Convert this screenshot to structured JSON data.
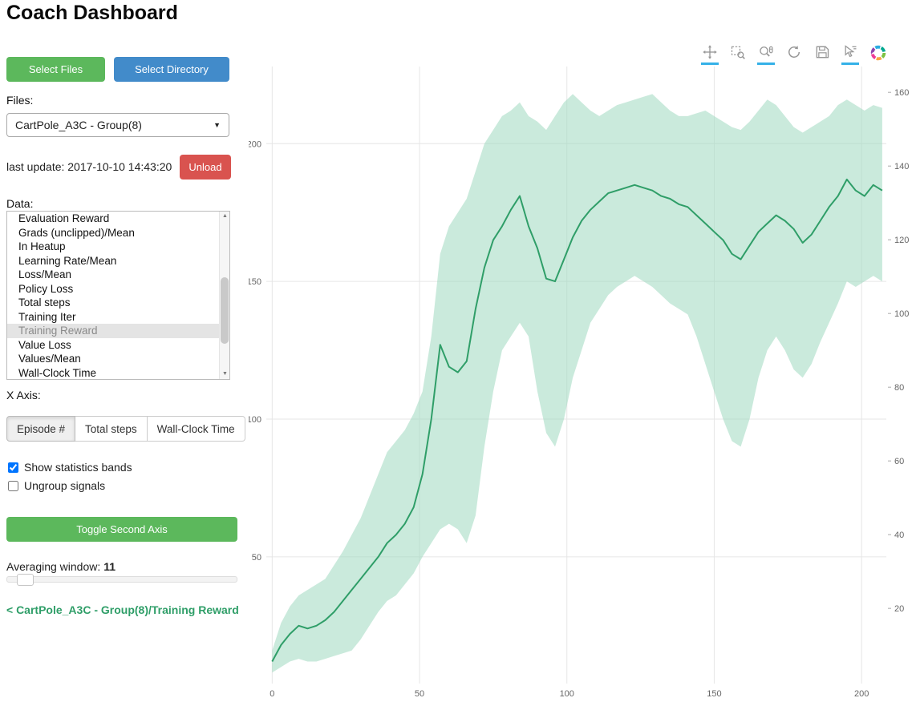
{
  "header": {
    "title": "Coach Dashboard"
  },
  "sidebar": {
    "select_files_label": "Select Files",
    "select_directory_label": "Select Directory",
    "files_label": "Files:",
    "files_selected": "CartPole_A3C - Group(8)",
    "last_update": "last update: 2017-10-10 14:43:20",
    "unload_label": "Unload",
    "data_label": "Data:",
    "data_items": [
      "Evaluation Reward",
      "Grads (unclipped)/Mean",
      "In Heatup",
      "Learning Rate/Mean",
      "Loss/Mean",
      "Policy Loss",
      "Total steps",
      "Training Iter",
      "Training Reward",
      "Value Loss",
      "Values/Mean",
      "Wall-Clock Time"
    ],
    "selected_data_item": "Training Reward",
    "x_axis_label": "X Axis:",
    "x_axis_options": [
      "Episode #",
      "Total steps",
      "Wall-Clock Time"
    ],
    "x_axis_selected": "Episode #",
    "show_bands_label": "Show statistics bands",
    "show_bands_checked": true,
    "ungroup_label": "Ungroup signals",
    "ungroup_checked": false,
    "toggle_second_axis_label": "Toggle Second Axis",
    "averaging_label": "Averaging window:",
    "averaging_value": "11",
    "breadcrumb_link": "< CartPole_A3C - Group(8)/Training Reward"
  },
  "toolbar": {
    "tools": [
      {
        "name": "pan",
        "active": true
      },
      {
        "name": "box-zoom",
        "active": false
      },
      {
        "name": "wheel-zoom",
        "active": true
      },
      {
        "name": "reset",
        "active": false
      },
      {
        "name": "save",
        "active": false
      },
      {
        "name": "hover",
        "active": true
      }
    ],
    "logo": "bokeh"
  },
  "colors": {
    "button_green": "#5cb85c",
    "button_blue": "#428bca",
    "button_red": "#d9534f",
    "link_green": "#2f9e68",
    "active_tool_underline": "#35b1e8"
  },
  "chart_data": {
    "type": "line",
    "title": "",
    "series_name": "CartPole_A3C - Group(8)/Training Reward",
    "xlabel": "Episode #",
    "ylabel": "Training Reward",
    "legend": "none",
    "grid": true,
    "line_color": "#2f9e68",
    "band_color": "#9fd9c0",
    "x_ticks": [
      0,
      50,
      100,
      150,
      200
    ],
    "y_left_ticks": [
      50,
      100,
      150,
      200
    ],
    "y_right_ticks": [
      20,
      40,
      60,
      80,
      100,
      120,
      140,
      160
    ],
    "x_range": [
      -2,
      208.4
    ],
    "y_left_range": [
      4,
      228
    ],
    "y_right_range": [
      -0.4,
      167
    ],
    "x": [
      0,
      3,
      6,
      9,
      12,
      15,
      18,
      21,
      24,
      27,
      30,
      33,
      36,
      39,
      42,
      45,
      48,
      51,
      54,
      57,
      60,
      63,
      66,
      69,
      72,
      75,
      78,
      81,
      84,
      87,
      90,
      93,
      96,
      99,
      102,
      105,
      108,
      111,
      114,
      117,
      120,
      123,
      126,
      129,
      132,
      135,
      138,
      141,
      144,
      147,
      150,
      153,
      156,
      159,
      162,
      165,
      168,
      171,
      174,
      177,
      180,
      183,
      186,
      189,
      192,
      195,
      198,
      201,
      204,
      207
    ],
    "mean": [
      12,
      18,
      22,
      25,
      24,
      25,
      27,
      30,
      34,
      38,
      42,
      46,
      50,
      55,
      58,
      62,
      68,
      80,
      100,
      127,
      119,
      117,
      121,
      140,
      155,
      165,
      170,
      176,
      181,
      170,
      162,
      151,
      150,
      158,
      166,
      172,
      176,
      179,
      182,
      183,
      184,
      185,
      184,
      183,
      181,
      180,
      178,
      177,
      174,
      171,
      168,
      165,
      160,
      158,
      163,
      168,
      171,
      174,
      172,
      169,
      164,
      167,
      172,
      177,
      181,
      187,
      183,
      181,
      185,
      183
    ],
    "band_lower": [
      8,
      10,
      12,
      13,
      12,
      12,
      13,
      14,
      15,
      16,
      20,
      25,
      30,
      34,
      36,
      40,
      44,
      50,
      55,
      60,
      62,
      60,
      55,
      65,
      90,
      110,
      125,
      130,
      135,
      130,
      110,
      95,
      90,
      100,
      115,
      125,
      135,
      140,
      145,
      148,
      150,
      152,
      150,
      148,
      145,
      142,
      140,
      138,
      130,
      120,
      110,
      100,
      92,
      90,
      100,
      115,
      125,
      130,
      125,
      118,
      115,
      120,
      128,
      135,
      142,
      150,
      148,
      150,
      152,
      150
    ],
    "band_upper": [
      16,
      26,
      32,
      36,
      38,
      40,
      42,
      47,
      52,
      58,
      64,
      72,
      80,
      88,
      92,
      96,
      102,
      110,
      130,
      160,
      170,
      175,
      180,
      190,
      200,
      205,
      210,
      212,
      215,
      210,
      208,
      205,
      210,
      215,
      218,
      215,
      212,
      210,
      212,
      214,
      215,
      216,
      217,
      218,
      215,
      212,
      210,
      210,
      211,
      212,
      210,
      208,
      206,
      205,
      208,
      212,
      216,
      214,
      210,
      206,
      204,
      206,
      208,
      210,
      214,
      216,
      214,
      212,
      214,
      213
    ]
  }
}
